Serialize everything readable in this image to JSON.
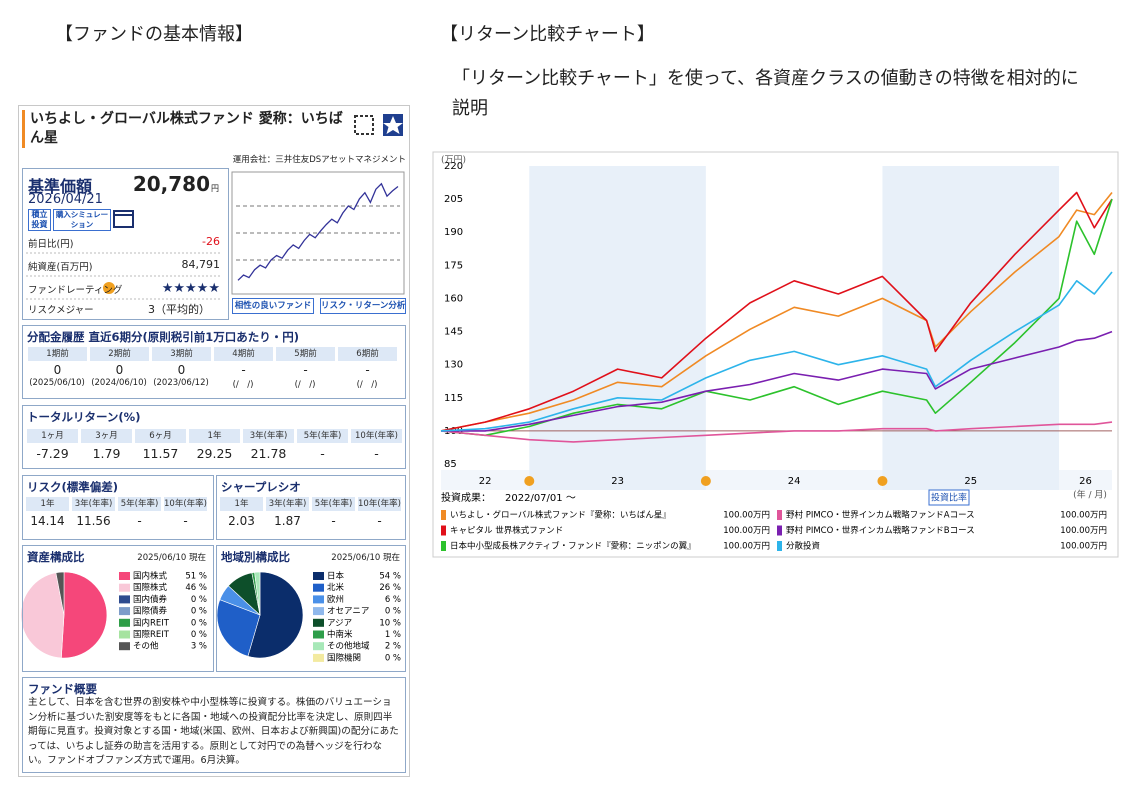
{
  "headings": {
    "fund_info": "【ファンドの基本情報】",
    "return_chart": "【リターン比較チャート】",
    "description": "「リターン比較チャート」を使って、各資産クラスの値動きの特徴を相対的に説明"
  },
  "fund": {
    "name": "いちよし・グローバル株式ファンド 愛称：いちばん星",
    "company": "運用会社：三井住友DSアセットマネジメント",
    "nav": {
      "label": "基準価額",
      "value": "20,780",
      "unit": "円",
      "date": "2026/04/21"
    },
    "buttons": [
      "積立投資",
      "購入シミュレーション"
    ],
    "stats": [
      {
        "label": "前日比(円)",
        "value": "-26"
      },
      {
        "label": "純資産(百万円)",
        "value": "84,791"
      },
      {
        "label": "ファンドレーティング",
        "value": "★★★★★"
      },
      {
        "label": "リスクメジャー",
        "value": "3（平均的）"
      }
    ],
    "links": [
      "相性の良いファンド",
      "リスク・リターン分析"
    ],
    "distribution": {
      "title": "分配金履歴 直近6期分(原則税引前1万口あたり・円)",
      "headers": [
        "1期前",
        "2期前",
        "3期前",
        "4期前",
        "5期前",
        "6期前"
      ],
      "values": [
        "0",
        "0",
        "0",
        "-",
        "-",
        "-"
      ],
      "dates": [
        "(2025/06/10)",
        "(2024/06/10)",
        "(2023/06/12)",
        "(/　/)",
        "(/　/)",
        "(/　/)"
      ]
    },
    "total_return": {
      "title": "トータルリターン(%)",
      "headers": [
        "1ヶ月",
        "3ヶ月",
        "6ヶ月",
        "1年",
        "3年(年率)",
        "5年(年率)",
        "10年(年率)"
      ],
      "values": [
        "-7.29",
        "1.79",
        "11.57",
        "29.25",
        "21.78",
        "-",
        "-"
      ]
    },
    "risk": {
      "title": "リスク(標準偏差)",
      "headers": [
        "1年",
        "3年(年率)",
        "5年(年率)",
        "10年(年率)"
      ],
      "values": [
        "14.14",
        "11.56",
        "-",
        "-"
      ]
    },
    "sharpe": {
      "title": "シャープレシオ",
      "headers": [
        "1年",
        "3年(年率)",
        "5年(年率)",
        "10年(年率)"
      ],
      "values": [
        "2.03",
        "1.87",
        "-",
        "-"
      ]
    },
    "overview": {
      "title": "ファンド概要",
      "text": "主として、日本を含む世界の割安株や中小型株等に投資する。株価のバリュエーション分析に基づいた割安度等をもとに各国・地域への投資配分比率を決定し、原則四半期毎に見直す。投資対象とする国・地域(米国、欧州、日本および新興国)の配分にあたっては、いちよし証券の助言を活用する。原則として対円での為替ヘッジを行わない。ファンドオブファンズ方式で運用。6月決算。"
    }
  },
  "chart_data": [
    {
      "type": "line",
      "axis_unit": "(万円)",
      "x_unit": "(年 / 月)",
      "period_label": "投資成果：",
      "period": "2022/07/01 ～",
      "button": "投資比率",
      "x": [
        2022.5,
        2022.75,
        2023.0,
        2023.25,
        2023.5,
        2023.75,
        2024.0,
        2024.25,
        2024.5,
        2024.75,
        2025.0,
        2025.25,
        2025.3,
        2025.5,
        2025.75,
        2026.0,
        2026.1,
        2026.2,
        2026.3
      ],
      "xlim": [
        2022.5,
        2026.3
      ],
      "xticks": [
        {
          "value": 2022.75,
          "label": "22"
        },
        {
          "value": 2023.5,
          "label": "23"
        },
        {
          "value": 2024.5,
          "label": "24"
        },
        {
          "value": 2025.5,
          "label": "25"
        },
        {
          "value": 2026.15,
          "label": "26"
        }
      ],
      "ylim": [
        85,
        220
      ],
      "yticks": [
        85,
        100,
        115,
        130,
        145,
        160,
        175,
        190,
        205,
        220
      ],
      "baseline": 100,
      "series": [
        {
          "name": "いちよし・グローバル株式ファンド『愛称：いちばん星』",
          "amount": "100.00万円",
          "color": "#f08a24",
          "values": [
            100,
            104,
            108,
            114,
            122,
            120,
            134,
            146,
            156,
            152,
            160,
            150,
            138,
            154,
            172,
            188,
            200,
            198,
            208
          ]
        },
        {
          "name": "キャピタル 世界株式ファンド",
          "amount": "100.00万円",
          "color": "#e0101a",
          "values": [
            100,
            104,
            110,
            118,
            128,
            124,
            142,
            158,
            168,
            162,
            170,
            150,
            136,
            158,
            180,
            200,
            208,
            192,
            205
          ]
        },
        {
          "name": "日本中小型成長株アクティブ・ファンド『愛称：ニッポンの翼』",
          "amount": "100.00万円",
          "color": "#2cc22c",
          "values": [
            100,
            98,
            102,
            108,
            112,
            110,
            118,
            114,
            120,
            112,
            118,
            114,
            108,
            122,
            140,
            160,
            195,
            180,
            205
          ]
        },
        {
          "name": "野村 PIMCO・世界インカム戦略ファンドAコース",
          "amount": "100.00万円",
          "color": "#e0559a",
          "values": [
            100,
            98,
            96,
            95,
            96,
            97,
            98,
            99,
            100,
            100,
            101,
            101,
            100,
            101,
            102,
            103,
            103,
            103,
            104
          ]
        },
        {
          "name": "野村 PIMCO・世界インカム戦略ファンドBコース",
          "amount": "100.00万円",
          "color": "#7a1fb0",
          "values": [
            100,
            100,
            103,
            107,
            111,
            113,
            118,
            121,
            126,
            123,
            128,
            126,
            119,
            128,
            133,
            138,
            141,
            142,
            145
          ]
        },
        {
          "name": "分散投資",
          "amount": "100.00万円",
          "color": "#2db4ea",
          "values": [
            100,
            101,
            104,
            110,
            115,
            114,
            124,
            132,
            136,
            130,
            134,
            128,
            120,
            132,
            145,
            157,
            168,
            162,
            172
          ]
        }
      ]
    },
    {
      "type": "sparkline",
      "color": "#333399",
      "ylim": [
        9500,
        22500
      ],
      "values": [
        10600,
        11200,
        10900,
        11800,
        12300,
        12000,
        12900,
        13400,
        13100,
        14000,
        14600,
        14200,
        15100,
        15800,
        15400,
        16200,
        16900,
        17500,
        17100,
        18200,
        19000,
        18600,
        19800,
        20500,
        19400,
        20900,
        21500,
        20100,
        20700,
        21200
      ]
    },
    {
      "type": "pie",
      "title": "資産構成比",
      "date": "2025/06/10 現在",
      "categories": [
        "国内株式",
        "国際株式",
        "国内債券",
        "国際債券",
        "国内REIT",
        "国際REIT",
        "その他"
      ],
      "values": [
        51,
        46,
        0,
        0,
        0,
        0,
        3
      ],
      "value_labels": [
        "51 %",
        "46 %",
        "0 %",
        "0 %",
        "0 %",
        "0 %",
        "3 %"
      ],
      "colors": [
        "#f5477a",
        "#f9c8d8",
        "#2e4b8f",
        "#7d9cc9",
        "#2f9e48",
        "#a6e3a0",
        "#555555"
      ]
    },
    {
      "type": "pie",
      "title": "地域別構成比",
      "date": "2025/06/10 現在",
      "categories": [
        "日本",
        "北米",
        "欧州",
        "オセアニア",
        "アジア",
        "中南米",
        "その他地域",
        "国際機関"
      ],
      "values": [
        54,
        26,
        6,
        0,
        10,
        1,
        2,
        0
      ],
      "value_labels": [
        "54 %",
        "26 %",
        "6 %",
        "0 %",
        "10 %",
        "1 %",
        "2 %",
        "0 %"
      ],
      "colors": [
        "#0b2d6b",
        "#1f5fc8",
        "#4a90e8",
        "#8fb8ec",
        "#0d4f2a",
        "#2e9e4a",
        "#a7e8b8",
        "#f3eaa0"
      ]
    }
  ]
}
